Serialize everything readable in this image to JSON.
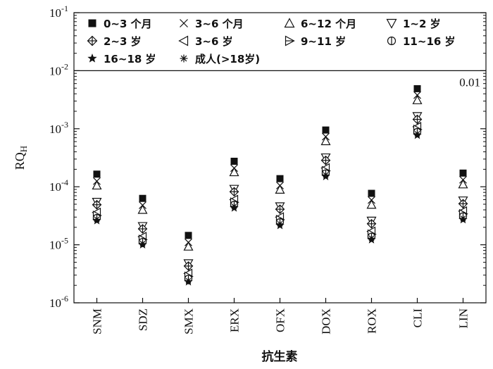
{
  "chart_data": {
    "type": "scatter",
    "y_scale": "log",
    "ylim": [
      1e-06,
      0.1
    ],
    "ylabel_main": "RQ",
    "ylabel_sub": "H",
    "xlabel": "抗生素",
    "y_ticks": [
      {
        "base": "10",
        "exp": "-1",
        "value": 0.1
      },
      {
        "base": "10",
        "exp": "-2",
        "value": 0.01
      },
      {
        "base": "10",
        "exp": "-3",
        "value": 0.001
      },
      {
        "base": "10",
        "exp": "-4",
        "value": 0.0001
      },
      {
        "base": "10",
        "exp": "-5",
        "value": 1e-05
      },
      {
        "base": "10",
        "exp": "-6",
        "value": 1e-06
      }
    ],
    "categories": [
      "SNM",
      "SDZ",
      "SMX",
      "ERX",
      "OFX",
      "DOX",
      "ROX",
      "CLI",
      "LIN"
    ],
    "reference_line": {
      "value": 0.01,
      "label": "0.01"
    },
    "legend_position": "top",
    "series": [
      {
        "name": "0~3 个月",
        "marker": "filled-square",
        "values": [
          0.000165,
          6.3e-05,
          1.45e-05,
          0.000275,
          0.000138,
          0.00095,
          7.7e-05,
          0.0049,
          0.000172
        ]
      },
      {
        "name": "3~6 个月",
        "marker": "x",
        "values": [
          0.000125,
          4.8e-05,
          1.1e-05,
          0.00021,
          0.000105,
          0.00073,
          5.9e-05,
          0.0038,
          0.000132
        ]
      },
      {
        "name": "6~12 个月",
        "marker": "triangle-up",
        "values": [
          0.000105,
          4e-05,
          9.3e-06,
          0.000178,
          8.9e-05,
          0.00061,
          4.9e-05,
          0.0031,
          0.00011
        ]
      },
      {
        "name": "1~2 岁",
        "marker": "triangle-down",
        "values": [
          5.5e-05,
          2.1e-05,
          4.8e-06,
          9.2e-05,
          4.6e-05,
          0.00032,
          2.6e-05,
          0.00165,
          5.8e-05
        ]
      },
      {
        "name": "2~3 岁",
        "marker": "diamond-plus",
        "values": [
          4.9e-05,
          1.88e-05,
          4.3e-06,
          8.2e-05,
          4.1e-05,
          0.000285,
          2.3e-05,
          0.00145,
          5.1e-05
        ]
      },
      {
        "name": "3~6 岁",
        "marker": "triangle-left",
        "values": [
          3.6e-05,
          1.38e-05,
          3.2e-06,
          6e-05,
          3e-05,
          0.00021,
          1.7e-05,
          0.00108,
          3.8e-05
        ]
      },
      {
        "name": "9~11 岁",
        "marker": "triangle-right",
        "values": [
          3.2e-05,
          1.23e-05,
          2.85e-06,
          5.4e-05,
          2.7e-05,
          0.000188,
          1.52e-05,
          0.00097,
          3.4e-05
        ]
      },
      {
        "name": "11~16 岁",
        "marker": "circle-bar",
        "values": [
          2.9e-05,
          1.12e-05,
          2.6e-06,
          4.9e-05,
          2.45e-05,
          0.00017,
          1.38e-05,
          0.00088,
          3.1e-05
        ]
      },
      {
        "name": "16~18 岁",
        "marker": "star",
        "values": [
          2.6e-05,
          1e-05,
          2.3e-06,
          4.3e-05,
          2.15e-05,
          0.00015,
          1.22e-05,
          0.00077,
          2.7e-05
        ]
      },
      {
        "name": "成人(>18岁)",
        "marker": "asterisk",
        "values": [
          2.75e-05,
          1.05e-05,
          2.4e-06,
          4.6e-05,
          2.3e-05,
          0.00016,
          1.3e-05,
          0.00082,
          2.85e-05
        ]
      }
    ]
  }
}
